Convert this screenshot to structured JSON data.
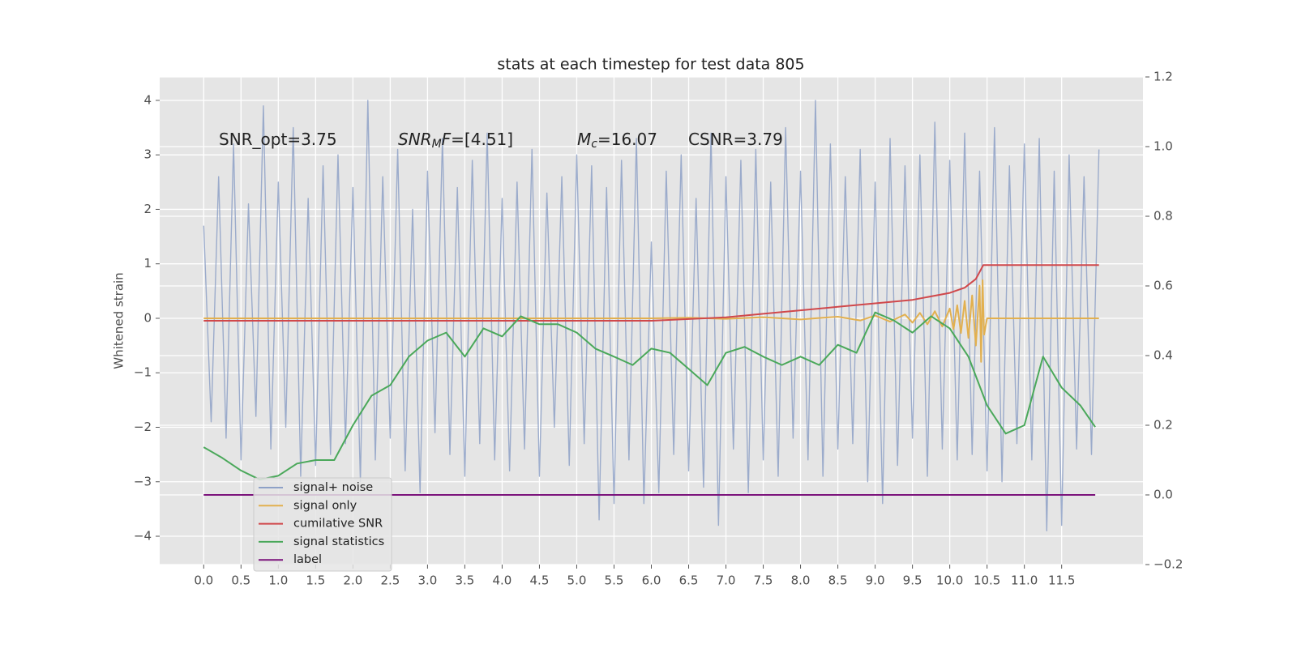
{
  "chart_data": {
    "type": "line",
    "title": "stats at each timestep for test data 805",
    "y_label": "Whitened strain",
    "xlim": [
      -0.59,
      12.59
    ],
    "ylim": [
      -4.52,
      4.43
    ],
    "y2lim": [
      -0.2,
      1.2
    ],
    "xticks": [
      {
        "value": 0,
        "label": "0.0"
      },
      0.5,
      {
        "value": 1,
        "label": "1.0"
      },
      1.5,
      {
        "value": 2,
        "label": "2.0"
      },
      2.5,
      {
        "value": 3,
        "label": "3.0"
      },
      3.5,
      {
        "value": 4,
        "label": "4.0"
      },
      4.5,
      {
        "value": 5,
        "label": "5.0"
      },
      5.5,
      {
        "value": 6,
        "label": "6.0"
      },
      6.5,
      {
        "value": 7,
        "label": "7.0"
      },
      7.5,
      {
        "value": 8,
        "label": "8.0"
      },
      8.5,
      {
        "value": 9,
        "label": "9.0"
      },
      9.5,
      {
        "value": 10,
        "label": "10.0"
      },
      10.5,
      {
        "value": 11,
        "label": "11.0"
      },
      11.5
    ],
    "yticks": [
      {
        "value": -4,
        "label": "−4"
      },
      {
        "value": -3,
        "label": "−3"
      },
      {
        "value": -2,
        "label": "−2"
      },
      {
        "value": -1,
        "label": "−1"
      },
      0,
      1,
      2,
      3,
      4
    ],
    "y2ticks": [
      {
        "value": -0.2,
        "label": "−0.2"
      },
      {
        "value": 0,
        "label": "0.0"
      },
      0.2,
      0.4,
      0.6,
      0.8,
      {
        "value": 1,
        "label": "1.0"
      },
      1.2
    ],
    "grid": true,
    "legend": "lower left",
    "annotations": [
      {
        "parts": [
          {
            "text": "SNR_opt=3.75"
          }
        ]
      },
      {
        "parts": [
          {
            "text": "SNR",
            "italic": true
          },
          {
            "text": "M",
            "italic": true,
            "sub": true
          },
          {
            "text": "F",
            "italic": true
          },
          {
            "text": "=[4.51]"
          }
        ]
      },
      {
        "parts": [
          {
            "text": "M",
            "italic": true
          },
          {
            "text": "c",
            "italic": true,
            "sub": true
          },
          {
            "text": "=16.07"
          }
        ]
      },
      {
        "parts": [
          {
            "text": "CSNR=3.79"
          }
        ]
      }
    ],
    "series": [
      {
        "name": "signal+ noise",
        "color": "#8ea1c7",
        "axis": "y",
        "x": [
          0,
          0.1,
          0.2,
          0.3,
          0.4,
          0.5,
          0.6,
          0.7,
          0.8,
          0.9,
          1,
          1.1,
          1.2,
          1.3,
          1.4,
          1.5,
          1.6,
          1.7,
          1.8,
          1.9,
          2,
          2.1,
          2.2,
          2.3,
          2.4,
          2.5,
          2.6,
          2.7,
          2.8,
          2.9,
          3,
          3.1,
          3.2,
          3.3,
          3.4,
          3.5,
          3.6,
          3.7,
          3.8,
          3.9,
          4,
          4.1,
          4.2,
          4.3,
          4.4,
          4.5,
          4.6,
          4.7,
          4.8,
          4.9,
          5,
          5.1,
          5.2,
          5.3,
          5.4,
          5.5,
          5.6,
          5.7,
          5.8,
          5.9,
          6,
          6.1,
          6.2,
          6.3,
          6.4,
          6.5,
          6.6,
          6.7,
          6.8,
          6.9,
          7,
          7.1,
          7.2,
          7.3,
          7.4,
          7.5,
          7.6,
          7.7,
          7.8,
          7.9,
          8,
          8.1,
          8.2,
          8.3,
          8.4,
          8.5,
          8.6,
          8.7,
          8.8,
          8.9,
          9,
          9.1,
          9.2,
          9.3,
          9.4,
          9.5,
          9.6,
          9.7,
          9.8,
          9.9,
          10,
          10.1,
          10.2,
          10.3,
          10.4,
          10.5,
          10.6,
          10.7,
          10.8,
          10.9,
          11,
          11.1,
          11.2,
          11.3,
          11.4,
          11.5,
          11.6,
          11.7,
          11.8,
          11.9,
          12
        ],
        "values": [
          1.7,
          -1.9,
          2.6,
          -2.2,
          3.2,
          -2.6,
          2.1,
          -1.8,
          3.9,
          -2.4,
          2.5,
          -2.0,
          3.5,
          -2.9,
          2.2,
          -2.7,
          2.8,
          -2.5,
          3.0,
          -2.3,
          2.4,
          -3.0,
          4.0,
          -2.6,
          2.6,
          -2.2,
          3.1,
          -2.8,
          2.0,
          -3.2,
          2.7,
          -2.1,
          3.3,
          -2.5,
          2.4,
          -2.9,
          2.9,
          -2.3,
          3.4,
          -2.6,
          2.2,
          -2.8,
          2.5,
          -2.4,
          3.1,
          -2.9,
          2.3,
          -2.0,
          2.6,
          -2.7,
          3.0,
          -2.3,
          2.8,
          -3.7,
          2.4,
          -3.4,
          2.9,
          -2.6,
          3.3,
          -3.4,
          1.4,
          -3.2,
          2.7,
          -2.5,
          3.0,
          -2.8,
          2.2,
          -3.1,
          3.4,
          -3.8,
          2.6,
          -2.4,
          2.9,
          -3.2,
          3.1,
          -2.6,
          2.5,
          -2.9,
          3.5,
          -2.2,
          2.7,
          -2.6,
          4.0,
          -2.9,
          3.2,
          -2.4,
          2.6,
          -2.3,
          3.1,
          -3.0,
          2.5,
          -3.4,
          3.3,
          -2.7,
          2.8,
          -2.2,
          3.0,
          -2.9,
          3.6,
          -2.4,
          2.9,
          -2.6,
          3.4,
          -2.5,
          2.7,
          -2.8,
          3.5,
          -3.0,
          2.8,
          -2.3,
          3.2,
          -2.6,
          3.3,
          -3.9,
          2.7,
          -3.8,
          3.0,
          -2.4,
          2.6,
          -2.5,
          3.1
        ]
      },
      {
        "name": "signal only",
        "color": "#e2b04f",
        "axis": "y",
        "x": [
          0,
          6.0,
          6.5,
          7.0,
          7.5,
          8.0,
          8.5,
          8.8,
          9.0,
          9.2,
          9.4,
          9.5,
          9.6,
          9.7,
          9.8,
          9.9,
          10.0,
          10.05,
          10.1,
          10.15,
          10.2,
          10.25,
          10.3,
          10.35,
          10.4,
          10.42,
          10.44,
          10.46,
          10.5,
          12.0
        ],
        "values": [
          0,
          0,
          0.01,
          -0.01,
          0.02,
          -0.02,
          0.03,
          -0.04,
          0.05,
          -0.06,
          0.07,
          -0.08,
          0.1,
          -0.11,
          0.13,
          -0.15,
          0.18,
          -0.2,
          0.24,
          -0.27,
          0.32,
          -0.36,
          0.42,
          -0.5,
          0.6,
          -0.8,
          0.7,
          -0.3,
          0,
          0
        ]
      },
      {
        "name": "cumilative SNR",
        "color": "#d0484b",
        "axis": "y2",
        "x": [
          0,
          6.0,
          6.5,
          7.0,
          7.5,
          8.0,
          8.5,
          9.0,
          9.5,
          10.0,
          10.2,
          10.35,
          10.45,
          12.0
        ],
        "values": [
          0.5,
          0.5,
          0.505,
          0.51,
          0.52,
          0.53,
          0.54,
          0.55,
          0.56,
          0.58,
          0.595,
          0.62,
          0.66,
          0.66
        ]
      },
      {
        "name": "signal statistics",
        "color": "#4aa85a",
        "axis": "y2",
        "x": [
          0,
          0.25,
          0.5,
          0.75,
          1,
          1.25,
          1.5,
          1.75,
          2,
          2.25,
          2.5,
          2.75,
          3,
          3.25,
          3.5,
          3.75,
          4,
          4.25,
          4.5,
          4.75,
          5,
          5.25,
          5.5,
          5.75,
          6,
          6.25,
          6.5,
          6.75,
          7,
          7.25,
          7.5,
          7.75,
          8,
          8.25,
          8.5,
          8.75,
          9,
          9.25,
          9.5,
          9.75,
          10,
          10.25,
          10.5,
          10.75,
          11,
          11.25,
          11.5,
          11.75,
          11.95
        ],
        "values": [
          0.137,
          0.106,
          0.07,
          0.044,
          0.055,
          0.09,
          0.1,
          0.1,
          0.2,
          0.285,
          0.315,
          0.397,
          0.443,
          0.466,
          0.397,
          0.478,
          0.455,
          0.513,
          0.49,
          0.49,
          0.466,
          0.42,
          0.397,
          0.373,
          0.42,
          0.408,
          0.362,
          0.315,
          0.408,
          0.425,
          0.397,
          0.373,
          0.397,
          0.373,
          0.431,
          0.408,
          0.524,
          0.501,
          0.466,
          0.513,
          0.478,
          0.397,
          0.257,
          0.176,
          0.2,
          0.397,
          0.308,
          0.257,
          0.195
        ]
      },
      {
        "name": "label",
        "color": "#7b137b",
        "axis": "y2",
        "x": [
          0,
          11.95
        ],
        "values": [
          0,
          0
        ]
      }
    ]
  }
}
